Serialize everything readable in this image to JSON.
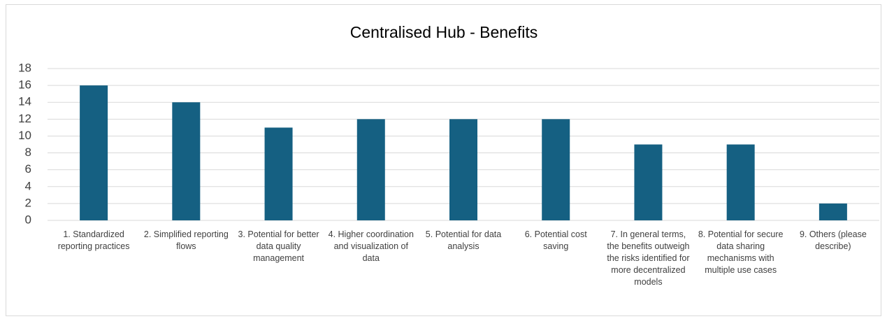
{
  "chart_data": {
    "type": "bar",
    "title": "Centralised Hub - Benefits",
    "categories": [
      "1. Standardized reporting practices",
      "2. Simplified reporting flows",
      "3. Potential for better data quality management",
      "4. Higher coordination and visualization of data",
      "5. Potential for data analysis",
      "6. Potential cost saving",
      "7. In general terms, the benefits outweigh the risks identified for more decentralized models",
      "8. Potential for secure data sharing mechanisms with multiple use cases",
      "9. Others (please describe)"
    ],
    "values": [
      16,
      14,
      11,
      12,
      12,
      12,
      9,
      9,
      2
    ],
    "color": "#156082",
    "ylim": [
      0,
      18
    ],
    "yticks": [
      0,
      2,
      4,
      6,
      8,
      10,
      12,
      14,
      16,
      18
    ],
    "grid": true
  }
}
